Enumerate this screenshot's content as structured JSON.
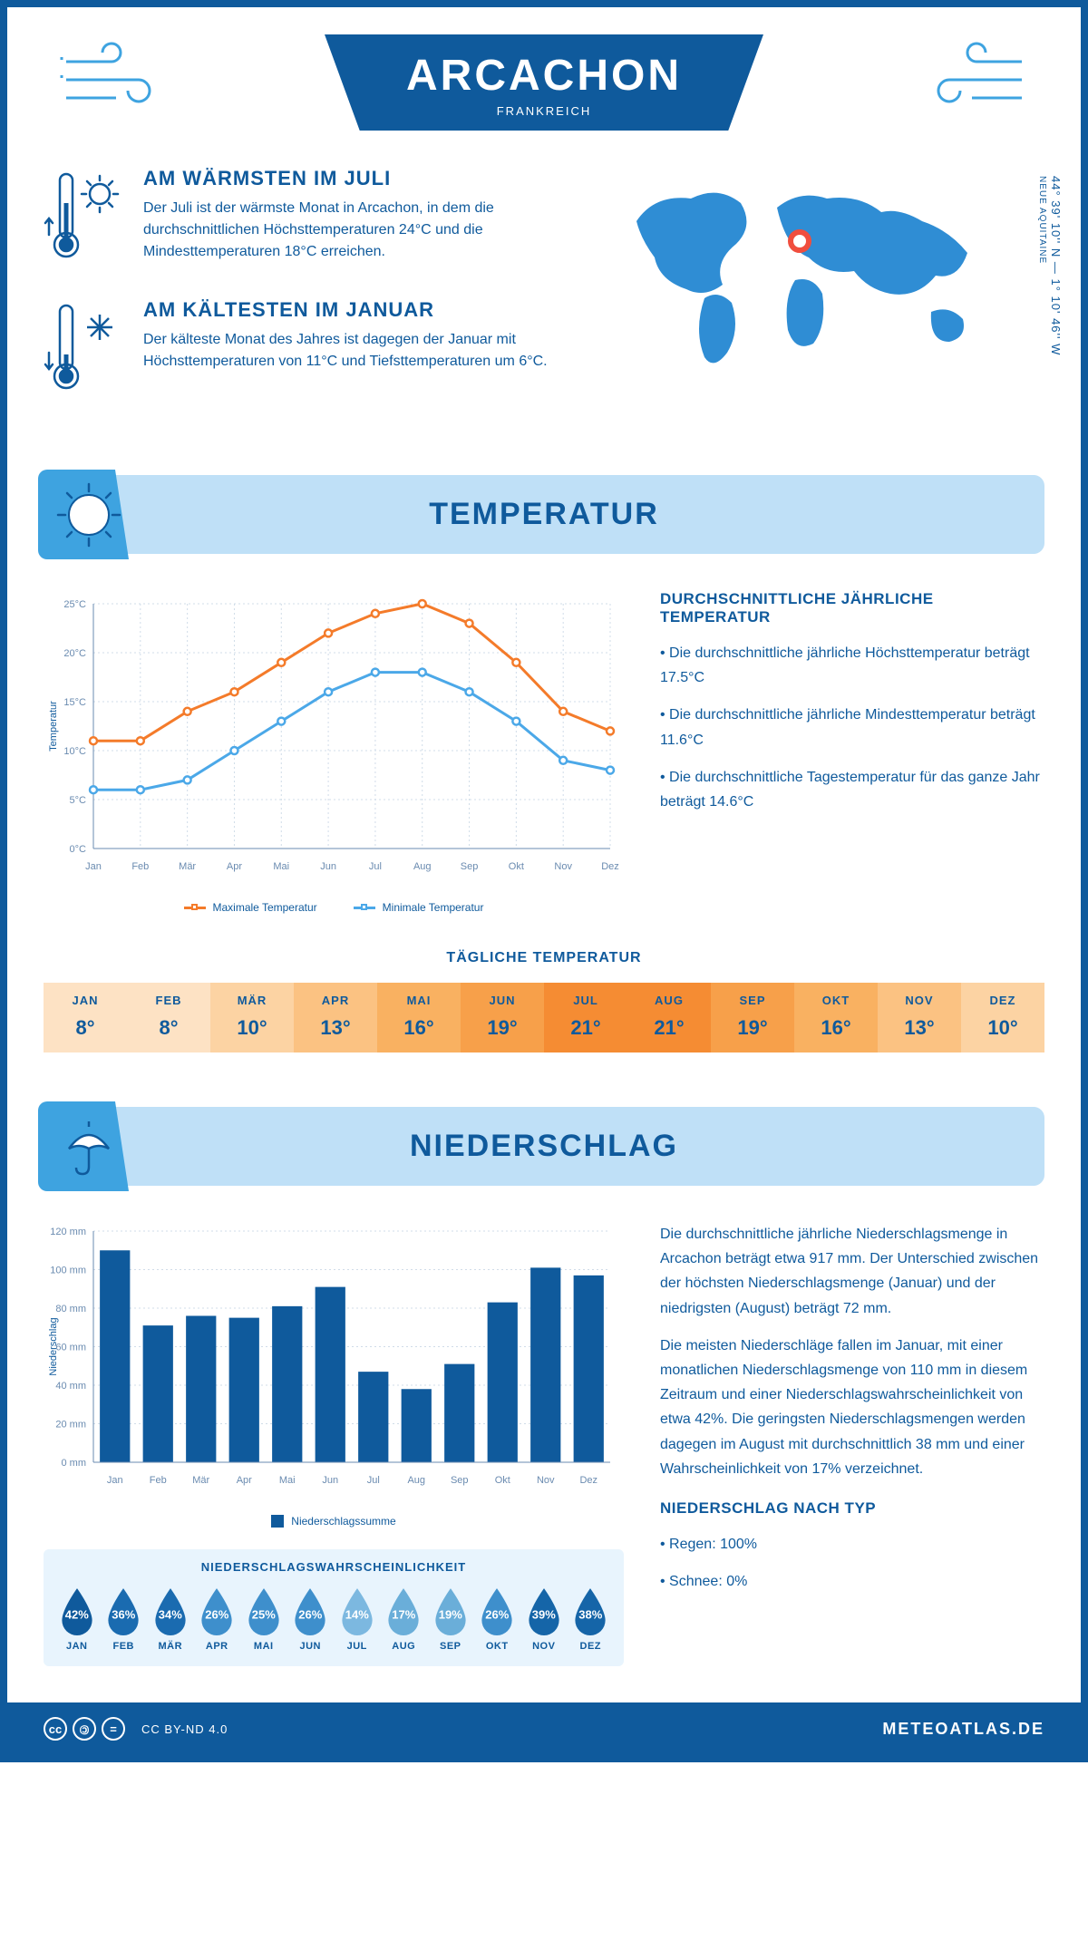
{
  "colors": {
    "primary": "#0f5a9c",
    "accent": "#3ea3e0",
    "light_bg": "#bfe0f7",
    "pale_bg": "#e8f4fd",
    "orange": "#f47b2a",
    "blue_line": "#4ba8e8",
    "grid": "#d0dce8"
  },
  "header": {
    "city": "ARCACHON",
    "country": "FRANKREICH"
  },
  "coords": {
    "lat_lon": "44° 39' 10'' N — 1° 10' 46'' W",
    "region": "NEUE AQUITAINE"
  },
  "warmest": {
    "title": "AM WÄRMSTEN IM JULI",
    "text": "Der Juli ist der wärmste Monat in Arcachon, in dem die durchschnittlichen Höchsttemperaturen 24°C und die Mindesttemperaturen 18°C erreichen."
  },
  "coldest": {
    "title": "AM KÄLTESTEN IM JANUAR",
    "text": "Der kälteste Monat des Jahres ist dagegen der Januar mit Höchsttemperaturen von 11°C und Tiefsttemperaturen um 6°C."
  },
  "temp_section": {
    "title": "TEMPERATUR",
    "annual_title": "DURCHSCHNITTLICHE JÄHRLICHE TEMPERATUR",
    "bullets": [
      "Die durchschnittliche jährliche Höchsttemperatur beträgt 17.5°C",
      "Die durchschnittliche jährliche Mindesttemperatur beträgt 11.6°C",
      "Die durchschnittliche Tagestemperatur für das ganze Jahr beträgt 14.6°C"
    ],
    "legend_max": "Maximale Temperatur",
    "legend_min": "Minimale Temperatur",
    "y_axis": "Temperatur",
    "months": [
      "Jan",
      "Feb",
      "Mär",
      "Apr",
      "Mai",
      "Jun",
      "Jul",
      "Aug",
      "Sep",
      "Okt",
      "Nov",
      "Dez"
    ],
    "max_series": [
      11,
      11,
      14,
      16,
      19,
      22,
      24,
      25,
      23,
      19,
      14,
      12
    ],
    "min_series": [
      6,
      6,
      7,
      10,
      13,
      16,
      18,
      18,
      16,
      13,
      9,
      8
    ],
    "ylim": [
      0,
      25
    ],
    "ytick_step": 5,
    "max_color": "#f47b2a",
    "min_color": "#4ba8e8"
  },
  "daily_temp": {
    "title": "TÄGLICHE TEMPERATUR",
    "months": [
      "JAN",
      "FEB",
      "MÄR",
      "APR",
      "MAI",
      "JUN",
      "JUL",
      "AUG",
      "SEP",
      "OKT",
      "NOV",
      "DEZ"
    ],
    "values": [
      "8°",
      "8°",
      "10°",
      "13°",
      "16°",
      "19°",
      "21°",
      "21°",
      "19°",
      "16°",
      "13°",
      "10°"
    ],
    "cell_colors": [
      "#fde2c4",
      "#fde2c4",
      "#fcd3a3",
      "#fbc282",
      "#f9b161",
      "#f7a04a",
      "#f58c33",
      "#f58c33",
      "#f7a04a",
      "#f9b161",
      "#fbc282",
      "#fcd3a3"
    ]
  },
  "precip_section": {
    "title": "NIEDERSCHLAG",
    "y_axis": "Niederschlag",
    "legend": "Niederschlagssumme",
    "months": [
      "Jan",
      "Feb",
      "Mär",
      "Apr",
      "Mai",
      "Jun",
      "Jul",
      "Aug",
      "Sep",
      "Okt",
      "Nov",
      "Dez"
    ],
    "values_mm": [
      110,
      71,
      76,
      75,
      81,
      91,
      47,
      38,
      51,
      83,
      101,
      97
    ],
    "ylim": [
      0,
      120
    ],
    "ytick_step": 20,
    "bar_color": "#0f5a9c",
    "para1": "Die durchschnittliche jährliche Niederschlagsmenge in Arcachon beträgt etwa 917 mm. Der Unterschied zwischen der höchsten Niederschlagsmenge (Januar) und der niedrigsten (August) beträgt 72 mm.",
    "para2": "Die meisten Niederschläge fallen im Januar, mit einer monatlichen Niederschlagsmenge von 110 mm in diesem Zeitraum und einer Niederschlagswahrscheinlichkeit von etwa 42%. Die geringsten Niederschlagsmengen werden dagegen im August mit durchschnittlich 38 mm und einer Wahrscheinlichkeit von 17% verzeichnet.",
    "by_type_title": "NIEDERSCHLAG NACH TYP",
    "by_type": [
      "Regen: 100%",
      "Schnee: 0%"
    ]
  },
  "precip_prob": {
    "title": "NIEDERSCHLAGSWAHRSCHEINLICHKEIT",
    "months": [
      "JAN",
      "FEB",
      "MÄR",
      "APR",
      "MAI",
      "JUN",
      "JUL",
      "AUG",
      "SEP",
      "OKT",
      "NOV",
      "DEZ"
    ],
    "pct": [
      "42%",
      "36%",
      "34%",
      "26%",
      "25%",
      "26%",
      "14%",
      "17%",
      "19%",
      "26%",
      "39%",
      "38%"
    ],
    "colors": [
      "#0f5a9c",
      "#1a6bb0",
      "#1a6bb0",
      "#3e8fcc",
      "#3e8fcc",
      "#3e8fcc",
      "#7cb8e0",
      "#6aaed9",
      "#6aaed9",
      "#3e8fcc",
      "#1565a8",
      "#1565a8"
    ]
  },
  "footer": {
    "license": "CC BY-ND 4.0",
    "site": "METEOATLAS.DE"
  }
}
